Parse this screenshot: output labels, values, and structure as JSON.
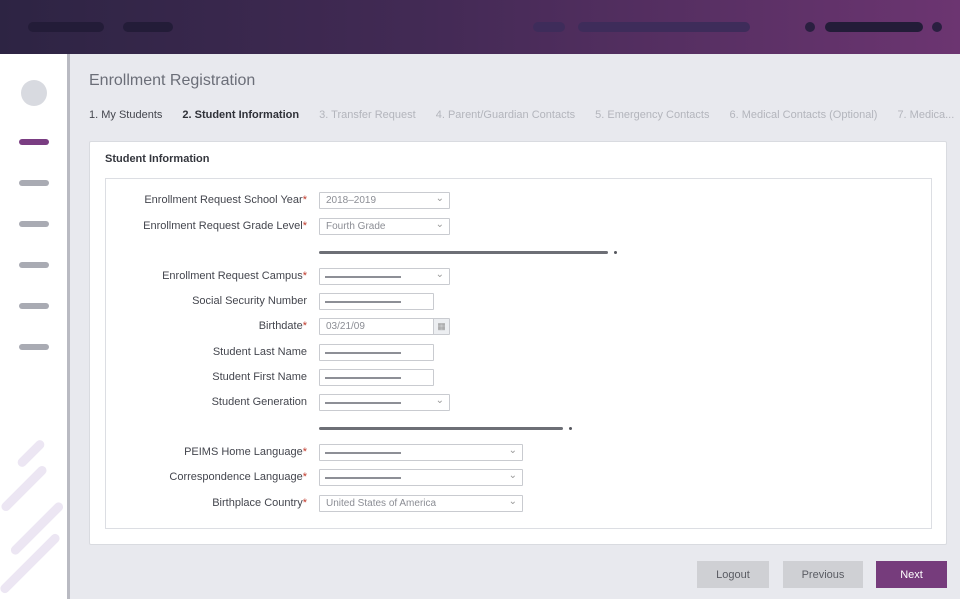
{
  "page": {
    "title": "Enrollment Registration"
  },
  "steps": [
    {
      "label": "1. My Students",
      "state": "done"
    },
    {
      "label": "2. Student Information",
      "state": "current"
    },
    {
      "label": "3. Transfer Request",
      "state": "todo"
    },
    {
      "label": "4. Parent/Guardian Contacts",
      "state": "todo"
    },
    {
      "label": "5. Emergency Contacts",
      "state": "todo"
    },
    {
      "label": "6. Medical Contacts (Optional)",
      "state": "todo"
    },
    {
      "label": "7. Medica...",
      "state": "todo"
    }
  ],
  "section": {
    "title": "Student Information"
  },
  "required_mark": "*",
  "fields": [
    {
      "label": "Enrollment Request School Year",
      "required": true,
      "type": "select",
      "value": "2018–2019"
    },
    {
      "label": "Enrollment Request Grade Level",
      "required": true,
      "type": "select",
      "value": "Fourth Grade"
    },
    {
      "label": "Enrollment Request Campus",
      "required": true,
      "type": "select",
      "value": ""
    },
    {
      "label": "Social Security Number",
      "required": false,
      "type": "text",
      "value": ""
    },
    {
      "label": "Birthdate",
      "required": true,
      "type": "date",
      "value": "03/21/09"
    },
    {
      "label": "Student Last Name",
      "required": false,
      "type": "text",
      "value": ""
    },
    {
      "label": "Student First Name",
      "required": false,
      "type": "text",
      "value": ""
    },
    {
      "label": "Student Generation",
      "required": false,
      "type": "select",
      "value": ""
    },
    {
      "label": "PEIMS Home Language",
      "required": true,
      "type": "select",
      "value": ""
    },
    {
      "label": "Correspondence Language",
      "required": true,
      "type": "select",
      "value": ""
    },
    {
      "label": "Birthplace Country",
      "required": true,
      "type": "select",
      "value": "United States of America"
    }
  ],
  "buttons": {
    "logout": "Logout",
    "previous": "Previous",
    "next": "Next"
  },
  "colors": {
    "accent": "#763c7c",
    "header_start": "#2d2443",
    "header_end": "#6c3571"
  }
}
